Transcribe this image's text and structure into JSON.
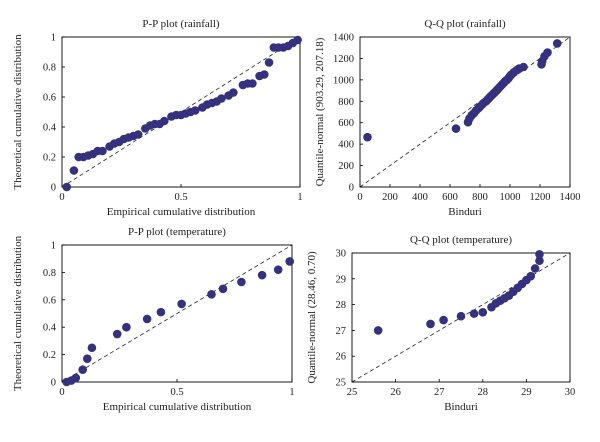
{
  "chart_data": [
    {
      "type": "scatter",
      "title": "P-P plot (rainfall)",
      "xlabel": "Empirical cumulative distribution",
      "ylabel": "Theoretical cumulative distribution",
      "xlim": [
        0,
        1
      ],
      "ylim": [
        0,
        1
      ],
      "xticks": [
        "0",
        "0.5",
        "1"
      ],
      "yticks": [
        "0",
        "0.2",
        "0.4",
        "0.6",
        "0.8",
        "1"
      ],
      "reference_line": "y = x",
      "grid": false,
      "marker_color": "#35317f",
      "points": [
        [
          0.02,
          0.0
        ],
        [
          0.05,
          0.11
        ],
        [
          0.07,
          0.2
        ],
        [
          0.09,
          0.2
        ],
        [
          0.11,
          0.21
        ],
        [
          0.13,
          0.22
        ],
        [
          0.15,
          0.24
        ],
        [
          0.17,
          0.24
        ],
        [
          0.2,
          0.27
        ],
        [
          0.22,
          0.29
        ],
        [
          0.24,
          0.3
        ],
        [
          0.26,
          0.32
        ],
        [
          0.28,
          0.33
        ],
        [
          0.3,
          0.34
        ],
        [
          0.32,
          0.35
        ],
        [
          0.35,
          0.39
        ],
        [
          0.37,
          0.41
        ],
        [
          0.39,
          0.42
        ],
        [
          0.41,
          0.42
        ],
        [
          0.43,
          0.44
        ],
        [
          0.46,
          0.47
        ],
        [
          0.48,
          0.48
        ],
        [
          0.5,
          0.48
        ],
        [
          0.52,
          0.49
        ],
        [
          0.54,
          0.5
        ],
        [
          0.56,
          0.51
        ],
        [
          0.59,
          0.53
        ],
        [
          0.61,
          0.55
        ],
        [
          0.63,
          0.56
        ],
        [
          0.65,
          0.57
        ],
        [
          0.67,
          0.59
        ],
        [
          0.7,
          0.61
        ],
        [
          0.72,
          0.63
        ],
        [
          0.76,
          0.68
        ],
        [
          0.78,
          0.69
        ],
        [
          0.8,
          0.69
        ],
        [
          0.83,
          0.74
        ],
        [
          0.85,
          0.75
        ],
        [
          0.87,
          0.83
        ],
        [
          0.89,
          0.93
        ],
        [
          0.91,
          0.93
        ],
        [
          0.93,
          0.93
        ],
        [
          0.95,
          0.94
        ],
        [
          0.97,
          0.96
        ],
        [
          0.99,
          0.98
        ]
      ]
    },
    {
      "type": "scatter",
      "title": "Q-Q plot (rainfall)",
      "xlabel": "Binduri",
      "ylabel": "Quantile-normal (903.29, 207.18)",
      "xlim": [
        0,
        1400
      ],
      "ylim": [
        0,
        1400
      ],
      "xticks": [
        "0",
        "200",
        "400",
        "600",
        "800",
        "1000",
        "1200",
        "1400"
      ],
      "yticks": [
        "0",
        "200",
        "400",
        "600",
        "800",
        "1000",
        "1200",
        "1400"
      ],
      "reference_line": "y = x",
      "grid": false,
      "marker_color": "#35317f",
      "points": [
        [
          50,
          465
        ],
        [
          640,
          545
        ],
        [
          720,
          605
        ],
        [
          730,
          640
        ],
        [
          745,
          670
        ],
        [
          760,
          690
        ],
        [
          775,
          715
        ],
        [
          790,
          735
        ],
        [
          800,
          750
        ],
        [
          815,
          770
        ],
        [
          825,
          785
        ],
        [
          840,
          800
        ],
        [
          850,
          815
        ],
        [
          860,
          830
        ],
        [
          870,
          845
        ],
        [
          880,
          858
        ],
        [
          890,
          872
        ],
        [
          900,
          885
        ],
        [
          910,
          900
        ],
        [
          920,
          915
        ],
        [
          930,
          930
        ],
        [
          940,
          945
        ],
        [
          950,
          960
        ],
        [
          960,
          975
        ],
        [
          970,
          990
        ],
        [
          980,
          1000
        ],
        [
          990,
          1015
        ],
        [
          1000,
          1035
        ],
        [
          1010,
          1050
        ],
        [
          1025,
          1070
        ],
        [
          1045,
          1090
        ],
        [
          1060,
          1105
        ],
        [
          1090,
          1120
        ],
        [
          1210,
          1145
        ],
        [
          1215,
          1175
        ],
        [
          1230,
          1220
        ],
        [
          1250,
          1255
        ],
        [
          1315,
          1340
        ]
      ]
    },
    {
      "type": "scatter",
      "title": "P-P plot (temperature)",
      "xlabel": "Empirical cumulative distribution",
      "ylabel": "Theoretical cumulative distribution",
      "xlim": [
        0,
        1
      ],
      "ylim": [
        0,
        1
      ],
      "xticks": [
        "0",
        "0.5",
        "1"
      ],
      "yticks": [
        "0",
        "0.2",
        "0.4",
        "0.6",
        "0.8",
        "1"
      ],
      "reference_line": "y = x",
      "grid": false,
      "marker_color": "#35317f",
      "points": [
        [
          0.02,
          0.0
        ],
        [
          0.04,
          0.01
        ],
        [
          0.06,
          0.03
        ],
        [
          0.09,
          0.09
        ],
        [
          0.11,
          0.17
        ],
        [
          0.13,
          0.25
        ],
        [
          0.24,
          0.35
        ],
        [
          0.28,
          0.4
        ],
        [
          0.37,
          0.46
        ],
        [
          0.43,
          0.51
        ],
        [
          0.52,
          0.57
        ],
        [
          0.65,
          0.64
        ],
        [
          0.7,
          0.68
        ],
        [
          0.78,
          0.73
        ],
        [
          0.87,
          0.78
        ],
        [
          0.94,
          0.82
        ],
        [
          0.99,
          0.88
        ]
      ]
    },
    {
      "type": "scatter",
      "title": "Q-Q plot (temperature)",
      "xlabel": "Binduri",
      "ylabel": "Quantile-normal (28.46, 0.70)",
      "xlim": [
        25,
        30
      ],
      "ylim": [
        25,
        30
      ],
      "xticks": [
        "25",
        "26",
        "27",
        "28",
        "29",
        "30"
      ],
      "yticks": [
        "25",
        "26",
        "27",
        "28",
        "29",
        "30"
      ],
      "reference_line": "y = x",
      "grid": false,
      "marker_color": "#35317f",
      "points": [
        [
          25.6,
          27.0
        ],
        [
          26.8,
          27.25
        ],
        [
          27.1,
          27.4
        ],
        [
          27.5,
          27.55
        ],
        [
          27.8,
          27.65
        ],
        [
          28.0,
          27.7
        ],
        [
          28.2,
          27.9
        ],
        [
          28.3,
          28.05
        ],
        [
          28.4,
          28.15
        ],
        [
          28.5,
          28.25
        ],
        [
          28.6,
          28.35
        ],
        [
          28.7,
          28.5
        ],
        [
          28.8,
          28.65
        ],
        [
          28.9,
          28.8
        ],
        [
          29.0,
          28.95
        ],
        [
          29.1,
          29.1
        ],
        [
          29.2,
          29.4
        ],
        [
          29.3,
          29.7
        ],
        [
          29.3,
          29.95
        ]
      ]
    }
  ]
}
